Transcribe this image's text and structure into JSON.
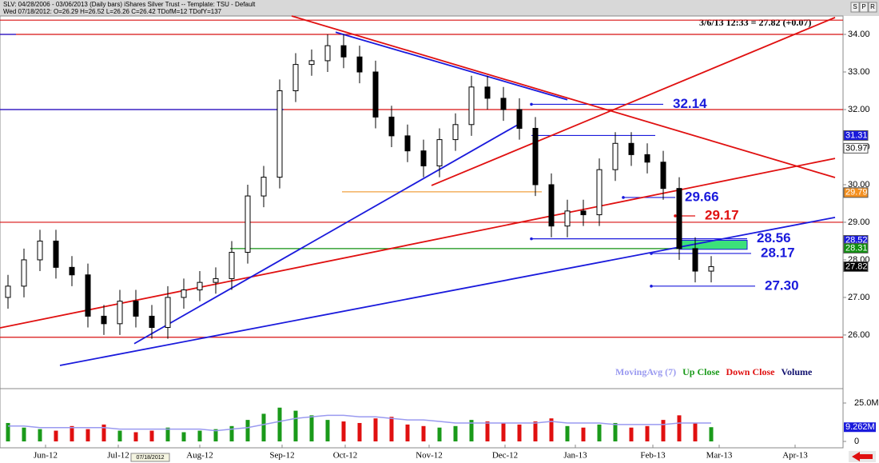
{
  "chart_data": {
    "type": "candlestick",
    "title": "SLV:  04/28/2006 - 03/06/2013 (Daily bars)   iShares Silver Trust  --  Template: TSU - Default",
    "subtitle": "Wed 07/18/2012:   O=26.29   H=26.52   L=26.26   C=26.42   TDofM=12   TDofY=137",
    "header_buttons": [
      "S",
      "P",
      "R"
    ],
    "annotation": "3/6/13 12:33 = 27.82 (+0.07)",
    "date_marker": "07/18/2012",
    "xlim": [
      -0.5,
      52.25
    ],
    "xticks": [
      {
        "value": 2.35,
        "label": "Jun-12"
      },
      {
        "value": 6.9,
        "label": "Jul-12"
      },
      {
        "value": 12,
        "label": "Aug-12"
      },
      {
        "value": 17.15,
        "label": "Sep-12"
      },
      {
        "value": 21.1,
        "label": "Oct-12"
      },
      {
        "value": 26.35,
        "label": "Nov-12"
      },
      {
        "value": 31.1,
        "label": "Dec-12"
      },
      {
        "value": 35.5,
        "label": "Jan-13"
      },
      {
        "value": 40.35,
        "label": "Feb-13"
      },
      {
        "value": 44.5,
        "label": "Mar-13"
      },
      {
        "value": 49.25,
        "label": "Apr-13"
      }
    ],
    "ylim": [
      24.7,
      34.49
    ],
    "yticks": [
      {
        "value": 34,
        "label": "34.00"
      },
      {
        "value": 33,
        "label": "33.00"
      },
      {
        "value": 32,
        "label": "32.00"
      },
      {
        "value": 31,
        "label": "31.00"
      },
      {
        "value": 30,
        "label": "30.00"
      },
      {
        "value": 29,
        "label": "29.00"
      },
      {
        "value": 28,
        "label": "28.00"
      },
      {
        "value": 27,
        "label": "27.00"
      },
      {
        "value": 26,
        "label": "26.00"
      }
    ],
    "open": [
      27.0,
      27.3,
      28.0,
      28.5,
      27.8,
      27.6,
      26.5,
      26.3,
      26.9,
      26.5,
      26.2,
      27.0,
      27.2,
      27.4,
      27.5,
      28.2,
      29.7,
      30.2,
      32.5,
      33.2,
      33.3,
      33.7,
      33.4,
      33.0,
      31.8,
      31.3,
      30.9,
      30.5,
      31.2,
      31.6,
      32.6,
      32.3,
      32.0,
      31.5,
      30.0,
      28.9,
      29.3,
      29.2,
      30.4,
      31.1,
      30.8,
      30.6,
      29.9,
      28.3,
      27.7
    ],
    "high": [
      27.6,
      28.3,
      28.8,
      28.8,
      28.1,
      27.9,
      26.8,
      27.2,
      27.2,
      26.8,
      27.3,
      27.5,
      27.7,
      27.8,
      28.5,
      30.0,
      30.5,
      32.8,
      33.5,
      33.6,
      34.0,
      34.0,
      33.7,
      33.3,
      32.1,
      31.6,
      31.2,
      31.5,
      31.9,
      32.9,
      32.9,
      32.6,
      32.3,
      31.8,
      30.3,
      29.6,
      29.6,
      30.7,
      31.4,
      31.4,
      31.1,
      30.9,
      30.2,
      28.6,
      28.1
    ],
    "low": [
      26.7,
      27.0,
      27.7,
      27.5,
      27.3,
      26.2,
      26.0,
      26.0,
      26.2,
      25.9,
      25.9,
      26.7,
      26.9,
      27.1,
      27.2,
      27.9,
      29.4,
      29.9,
      32.2,
      32.9,
      33.0,
      33.1,
      32.7,
      31.5,
      31.0,
      30.6,
      30.2,
      30.2,
      30.9,
      31.3,
      32.0,
      31.7,
      31.2,
      29.7,
      28.6,
      28.6,
      28.9,
      28.9,
      30.1,
      30.5,
      30.3,
      29.6,
      28.0,
      27.4,
      27.4
    ],
    "close": [
      27.3,
      28.0,
      28.5,
      27.8,
      27.6,
      26.5,
      26.3,
      26.9,
      26.5,
      26.2,
      27.0,
      27.2,
      27.4,
      27.5,
      28.2,
      29.7,
      30.2,
      32.5,
      33.2,
      33.3,
      33.7,
      33.4,
      33.0,
      31.8,
      31.3,
      30.9,
      30.5,
      31.2,
      31.6,
      32.6,
      32.3,
      32.0,
      31.5,
      30.0,
      28.9,
      29.3,
      29.2,
      30.4,
      31.1,
      30.8,
      30.6,
      29.9,
      28.3,
      27.7,
      27.82
    ],
    "volume": {
      "values": [
        12,
        9,
        8,
        7,
        10,
        8,
        11,
        7,
        6,
        7,
        9,
        6,
        7,
        8,
        10,
        14,
        18,
        22,
        20,
        17,
        14,
        13,
        12,
        15,
        16,
        11,
        10,
        9,
        10,
        14,
        13,
        12,
        11,
        13,
        15,
        10,
        9,
        11,
        12,
        9,
        10,
        14,
        17,
        12,
        9.262
      ],
      "ylim": [
        0,
        32.3
      ],
      "yticks": [
        {
          "value": 25,
          "label": "25.0M"
        },
        0
      ],
      "last_label": {
        "value": 9.262,
        "label": "9.262M"
      }
    },
    "moving_avg": {
      "name": "MovingAvg (7)",
      "color": "#9a9af0",
      "values": [
        10,
        10,
        9,
        9,
        9,
        9,
        9,
        8,
        8,
        8,
        8,
        8,
        8,
        7,
        8,
        9,
        11,
        13,
        15,
        16,
        17,
        17,
        16,
        16,
        15,
        14,
        14,
        13,
        12,
        12,
        12,
        12,
        12,
        12,
        13,
        12,
        12,
        12,
        11,
        11,
        11,
        11,
        12,
        12,
        12
      ]
    },
    "legend": [
      {
        "name": "MovingAvg (7)",
        "color": "#9a9af0"
      },
      {
        "name": "Up Close",
        "color": "#1a9a1a"
      },
      {
        "name": "Down Close",
        "color": "#e01010"
      },
      {
        "name": "Volume",
        "color": "#10106e"
      }
    ],
    "up_color": "#1a9a1a",
    "down_color": "#e01010",
    "levels": [
      {
        "value": 34.38,
        "color": "#d81010",
        "from": -0.5,
        "to": 52.25
      },
      {
        "value": 34.0,
        "color": "#d81010",
        "from": -0.5,
        "to": 52.25
      },
      {
        "value": 32.0,
        "color": "#d81010",
        "from": -0.5,
        "to": 52.25
      },
      {
        "value": 29.0,
        "color": "#d81010",
        "from": -0.5,
        "to": 52.25
      },
      {
        "value": 25.94,
        "color": "#d81010",
        "from": -0.5,
        "to": 52.25
      },
      {
        "value": 34.0,
        "color": "#1a1adc",
        "from": -0.5,
        "to": 0.5
      },
      {
        "value": 32.0,
        "color": "#1a1adc",
        "from": -0.5,
        "to": 17.25
      },
      {
        "value": 29.81,
        "color": "#f0a040",
        "from": 20.9,
        "to": 33.4
      },
      {
        "value": 28.3,
        "color": "#109010",
        "from": 13.9,
        "to": 46.25
      },
      {
        "value": 31.31,
        "color": "#1a1adc",
        "from": 32.75,
        "to": 40.5
      },
      {
        "value": 32.14,
        "label": "32.14",
        "color": "#1a1adc",
        "from": 32.75,
        "to": 41.0
      },
      {
        "value": 29.66,
        "label": "29.66",
        "color": "#1a1adc",
        "from": 38.5,
        "to": 41.75
      },
      {
        "value": 29.17,
        "label": "29.17",
        "color": "#e01010",
        "from": 41.75,
        "to": 43.0
      },
      {
        "value": 28.56,
        "label": "28.56",
        "color": "#1a1adc",
        "from": 32.75,
        "to": 46.25
      },
      {
        "value": 28.17,
        "label": "28.17",
        "color": "#1a1adc",
        "from": 40.25,
        "to": 46.5
      },
      {
        "value": 27.3,
        "label": "27.30",
        "color": "#1a1adc",
        "from": 40.25,
        "to": 46.75
      }
    ],
    "zone": {
      "from": 42,
      "to": 46.25,
      "low": 28.28,
      "high": 28.52,
      "color": "#3ce07a"
    },
    "trendlines": [
      {
        "color": "#e01010",
        "x": [
          26.5,
          51.75
        ],
        "y": [
          29.98,
          34.45
        ]
      },
      {
        "color": "#e01010",
        "x": [
          17.75,
          51.75
        ],
        "y": [
          34.49,
          30.19
        ]
      },
      {
        "color": "#e01010",
        "x": [
          -0.5,
          51.75
        ],
        "y": [
          26.19,
          30.7
        ]
      },
      {
        "color": "#1a1adc",
        "x": [
          20.5,
          35
        ],
        "y": [
          34.06,
          32.26
        ]
      },
      {
        "color": "#1a1adc",
        "x": [
          7.9,
          32
        ],
        "y": [
          25.77,
          31.62
        ]
      },
      {
        "color": "#1a1adc",
        "x": [
          3.25,
          51.75
        ],
        "y": [
          25.19,
          29.13
        ]
      }
    ],
    "price_tags": [
      {
        "value": 31.31,
        "label": "31.31",
        "bg": "#1a1adc",
        "fg": "#ffffff"
      },
      {
        "value": 30.97,
        "label": "30.97",
        "bg": "#ffffff",
        "fg": "#000000"
      },
      {
        "value": 29.79,
        "label": "29.79",
        "bg": "#f39020",
        "fg": "#ffffff"
      },
      {
        "value": 28.52,
        "label": "28.52",
        "bg": "#1a1adc",
        "fg": "#ffffff"
      },
      {
        "value": 28.31,
        "label": "28.31",
        "bg": "#109010",
        "fg": "#ffffff"
      },
      {
        "value": 27.82,
        "label": "27.82",
        "bg": "#000000",
        "fg": "#ffffff"
      }
    ]
  }
}
